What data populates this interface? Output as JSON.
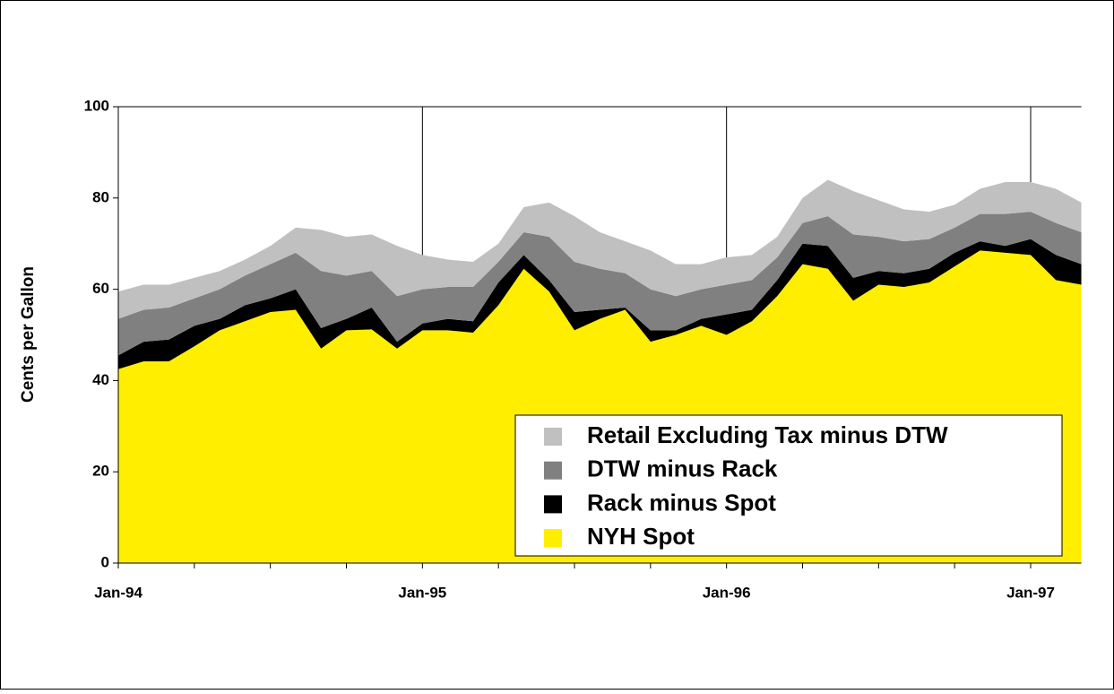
{
  "chart_data": {
    "type": "stacked-area",
    "y_label": "Cents per Gallon",
    "categories": [
      "Jan-94",
      null,
      null,
      null,
      null,
      null,
      null,
      null,
      null,
      null,
      null,
      null,
      "Jan-95",
      null,
      null,
      null,
      null,
      null,
      null,
      null,
      null,
      null,
      null,
      null,
      "Jan-96",
      null,
      null,
      null,
      null,
      null,
      null,
      null,
      null,
      null,
      null,
      null,
      "Jan-97",
      null,
      null
    ],
    "ylim": [
      0,
      100
    ],
    "yticks": [
      0,
      20,
      40,
      60,
      80,
      100
    ],
    "series": [
      {
        "name": "NYH Spot",
        "color": "#ffee00",
        "values": [
          42.5,
          44.2,
          44.2,
          47.5,
          51,
          53,
          55,
          55.5,
          47,
          51,
          51.2,
          47,
          51,
          51,
          50.5,
          56.5,
          64.5,
          59.5,
          51,
          53.5,
          55.5,
          48.5,
          50,
          52,
          50,
          53,
          58.5,
          65.5,
          64.5,
          57.5,
          61,
          60.5,
          61.5,
          65,
          68.5,
          68,
          67.5,
          62,
          61
        ]
      },
      {
        "name": "Rack minus Spot",
        "color": "#000000",
        "values": [
          3,
          4.3,
          4.8,
          4.5,
          2.5,
          3.5,
          3,
          4.5,
          4.5,
          2.5,
          4.8,
          1.5,
          1.5,
          2.5,
          2.5,
          5,
          3,
          2.5,
          4,
          2,
          0.5,
          2.5,
          1,
          1.5,
          4.5,
          2.5,
          3.5,
          4.5,
          5,
          5,
          3,
          3,
          3,
          3,
          2,
          1.5,
          3.5,
          5.5,
          4.5
        ]
      },
      {
        "name": "DTW minus Rack",
        "color": "#808080",
        "values": [
          8,
          7,
          7,
          6,
          6.5,
          6.5,
          7.5,
          8,
          12.5,
          9.5,
          8,
          10,
          7.5,
          7,
          7.5,
          4.5,
          5,
          9.5,
          11,
          9,
          7.5,
          9,
          7.5,
          6.5,
          6.5,
          6.5,
          5,
          4.5,
          6.5,
          9.5,
          7.5,
          7,
          6.5,
          5.5,
          6,
          7,
          6,
          7,
          7
        ]
      },
      {
        "name": "Retail Excluding Tax minus DTW",
        "color": "#c0c0c0",
        "values": [
          6,
          5.5,
          5,
          4.5,
          4,
          3.5,
          4,
          5.5,
          9,
          8.5,
          8,
          11,
          7.5,
          6,
          5.5,
          4,
          5.5,
          7.5,
          10,
          8,
          7,
          8.5,
          7,
          5.5,
          6,
          5.5,
          4.5,
          5.5,
          8,
          9.5,
          8,
          7,
          6,
          5,
          5.5,
          7,
          6.5,
          7.5,
          6.5
        ]
      }
    ]
  }
}
